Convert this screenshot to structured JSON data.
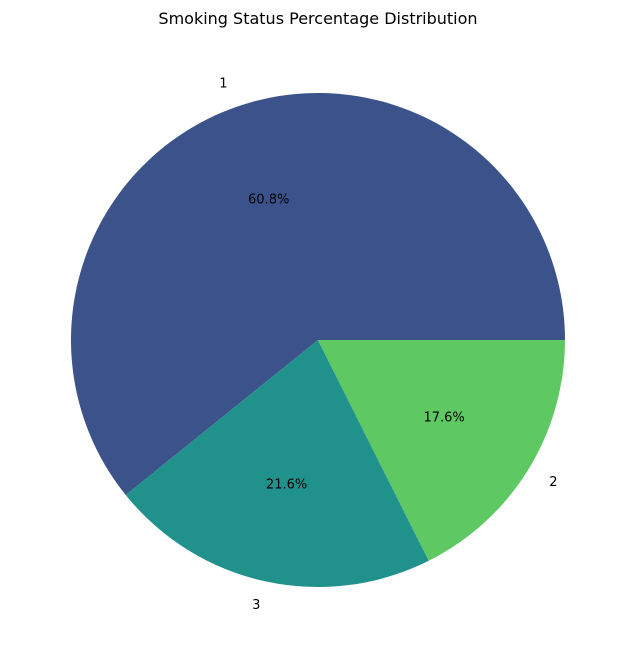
{
  "chart_data": {
    "type": "pie",
    "title": "Smoking Status Percentage Distribution",
    "start_angle_deg": 0,
    "direction": "counterclockwise",
    "slices": [
      {
        "label": "1",
        "value": 60.8,
        "display": "60.8%",
        "color": "#3b528b"
      },
      {
        "label": "3",
        "value": 21.6,
        "display": "21.6%",
        "color": "#21918c"
      },
      {
        "label": "2",
        "value": 17.6,
        "display": "17.6%",
        "color": "#5ec962"
      }
    ]
  }
}
